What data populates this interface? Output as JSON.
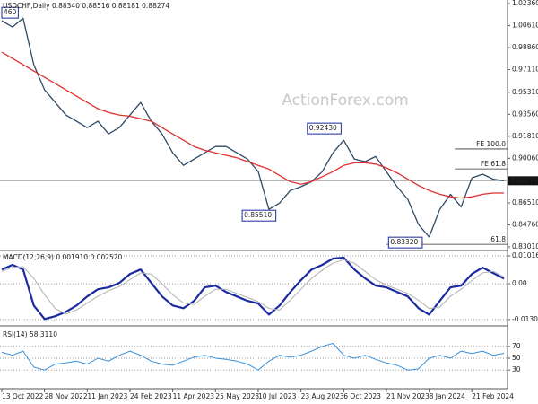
{
  "chart_data": [
    {
      "type": "line",
      "title": "USDCHF,Daily  0.88340 0.88516 0.88181 0.88274",
      "watermark": "ActionForex.com",
      "xlim": [
        0,
        47
      ],
      "ylim": [
        0.828,
        1.0265
      ],
      "yticks": [
        {
          "value": 1.0236,
          "label": "1.02360"
        },
        {
          "value": 1.0061,
          "label": "1.00610"
        },
        {
          "value": 0.9886,
          "label": "0.98860"
        },
        {
          "value": 0.9711,
          "label": "0.97110"
        },
        {
          "value": 0.9531,
          "label": "0.95310"
        },
        {
          "value": 0.9356,
          "label": "0.93560"
        },
        {
          "value": 0.9181,
          "label": "0.91810"
        },
        {
          "value": 0.9006,
          "label": "0.90060"
        },
        {
          "value": 0.8651,
          "label": "0.86510"
        },
        {
          "value": 0.8476,
          "label": "0.84760"
        },
        {
          "value": 0.8301,
          "label": "0.83010"
        }
      ],
      "last": 0.88274,
      "series": [
        {
          "color": "#2e4a66",
          "values": [
            1.01,
            1.005,
            1.012,
            0.975,
            0.955,
            0.945,
            0.935,
            0.93,
            0.925,
            0.93,
            0.92,
            0.925,
            0.935,
            0.945,
            0.93,
            0.92,
            0.905,
            0.895,
            0.9,
            0.905,
            0.91,
            0.91,
            0.905,
            0.9,
            0.89,
            0.86,
            0.865,
            0.875,
            0.878,
            0.882,
            0.89,
            0.905,
            0.915,
            0.9,
            0.898,
            0.902,
            0.89,
            0.878,
            0.868,
            0.848,
            0.838,
            0.86,
            0.872,
            0.862,
            0.885,
            0.888,
            0.884,
            0.8827
          ]
        },
        {
          "color": "#e03030",
          "values": [
            0.985,
            0.98,
            0.975,
            0.97,
            0.965,
            0.96,
            0.955,
            0.95,
            0.945,
            0.94,
            0.937,
            0.935,
            0.934,
            0.932,
            0.93,
            0.925,
            0.92,
            0.915,
            0.91,
            0.907,
            0.905,
            0.903,
            0.901,
            0.898,
            0.895,
            0.892,
            0.887,
            0.882,
            0.88,
            0.882,
            0.886,
            0.89,
            0.895,
            0.897,
            0.897,
            0.896,
            0.893,
            0.889,
            0.884,
            0.879,
            0.875,
            0.872,
            0.87,
            0.869,
            0.87,
            0.872,
            0.873,
            0.873
          ]
        }
      ],
      "boxes": [
        {
          "text": "460",
          "x": 0,
          "y": 1.0164
        },
        {
          "text": "0.92430",
          "x": 28.6,
          "y": 0.9243
        },
        {
          "text": "0.85510",
          "x": 22.5,
          "y": 0.855
        },
        {
          "text": "0.83320",
          "x": 36.2,
          "y": 0.8336
        }
      ],
      "levels": [
        {
          "text": "FE 100.0",
          "x": 42.4,
          "y": 0.908
        },
        {
          "text": "FE 61.8",
          "x": 42.4,
          "y": 0.8922
        },
        {
          "text": "61.8",
          "x": 36,
          "y": 0.8322
        }
      ]
    },
    {
      "type": "line",
      "title": "MACD(12,26,9) 0.001910 0.002520",
      "xlim": [
        0,
        47
      ],
      "ylim": [
        -0.015,
        0.0118
      ],
      "grid": true,
      "yticks": [
        0.010166,
        {
          "value": 0,
          "label": "0.00"
        },
        -0.013006
      ],
      "series": [
        {
          "color": "#1a2aa0",
          "width": 2.2,
          "values": [
            0.0052,
            0.0069,
            0.0052,
            -0.0079,
            -0.0128,
            -0.0118,
            -0.0102,
            -0.0079,
            -0.0046,
            -0.002,
            -0.0013,
            0.0003,
            0.0036,
            0.0052,
            0.0003,
            -0.0046,
            -0.0079,
            -0.0089,
            -0.0062,
            -0.0013,
            -0.0007,
            -0.003,
            -0.0046,
            -0.0062,
            -0.0072,
            -0.0112,
            -0.0079,
            -0.003,
            0.0013,
            0.0052,
            0.0069,
            0.0092,
            0.0095,
            0.0052,
            0.002,
            -0.0007,
            -0.0013,
            -0.003,
            -0.0046,
            -0.0089,
            -0.0112,
            -0.0062,
            -0.0013,
            -0.0007,
            0.0036,
            0.0059,
            0.0039,
            0.00191
          ]
        },
        {
          "color": "#b0b0b0",
          "width": 1,
          "values": [
            0.0045,
            0.006,
            0.0062,
            0.002,
            -0.004,
            -0.009,
            -0.011,
            -0.0095,
            -0.007,
            -0.0045,
            -0.0025,
            -0.001,
            0.0015,
            0.004,
            0.0035,
            0.0,
            -0.004,
            -0.007,
            -0.0075,
            -0.0045,
            -0.002,
            -0.002,
            -0.0035,
            -0.005,
            -0.0065,
            -0.009,
            -0.0095,
            -0.006,
            -0.002,
            0.002,
            0.005,
            0.0075,
            0.0088,
            0.0075,
            0.0045,
            0.0015,
            -0.0005,
            -0.002,
            -0.0035,
            -0.006,
            -0.009,
            -0.0085,
            -0.0045,
            -0.002,
            0.0012,
            0.004,
            0.0045,
            0.00252
          ]
        }
      ]
    },
    {
      "type": "line",
      "title": "RSI(14) 58.3110",
      "xlim": [
        0,
        47
      ],
      "ylim": [
        0,
        100
      ],
      "grid": true,
      "yticks": [
        70,
        50,
        30
      ],
      "xticks": [
        {
          "value": 0,
          "label": "13 Oct 2022"
        },
        {
          "value": 4,
          "label": "28 Nov 2022"
        },
        {
          "value": 8,
          "label": "11 Jan 2023"
        },
        {
          "value": 12,
          "label": "24 Feb 2023"
        },
        {
          "value": 16,
          "label": "11 Apr 2023"
        },
        {
          "value": 20,
          "label": "25 May 2023"
        },
        {
          "value": 24,
          "label": "10 Jul 2023"
        },
        {
          "value": 28,
          "label": "23 Aug 2023"
        },
        {
          "value": 32,
          "label": "6 Oct 2023"
        },
        {
          "value": 36,
          "label": "21 Nov 2023"
        },
        {
          "value": 40,
          "label": "8 Jan 2024"
        },
        {
          "value": 44,
          "label": "21 Feb 2024"
        }
      ],
      "series": [
        {
          "color": "#3a8fd8",
          "width": 1,
          "values": [
            60,
            55,
            62,
            35,
            30,
            40,
            42,
            45,
            40,
            50,
            45,
            55,
            62,
            55,
            45,
            40,
            38,
            45,
            52,
            55,
            50,
            48,
            45,
            40,
            30,
            45,
            55,
            52,
            55,
            62,
            70,
            75,
            55,
            50,
            55,
            48,
            42,
            38,
            30,
            32,
            50,
            55,
            50,
            62,
            58,
            62,
            55,
            58.311
          ]
        }
      ]
    }
  ]
}
